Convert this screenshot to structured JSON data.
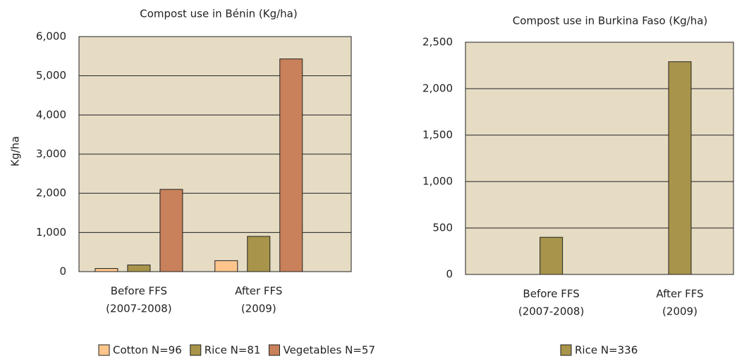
{
  "chart_data": [
    {
      "type": "bar",
      "title": "Compost use in Bénin (Kg/ha)",
      "ylabel": "Kg/ha",
      "categories": [
        [
          "Before FFS",
          "(2007-2008)"
        ],
        [
          "After FFS",
          "(2009)"
        ]
      ],
      "series": [
        {
          "name": "Cotton N=96",
          "color": "#fdc58c",
          "values": [
            80,
            280
          ]
        },
        {
          "name": "Rice N=81",
          "color": "#a8944a",
          "values": [
            170,
            900
          ]
        },
        {
          "name": "Vegetables N=57",
          "color": "#c8815a",
          "values": [
            2100,
            5430
          ]
        }
      ],
      "ylim": [
        0,
        6000
      ],
      "yticks": [
        0,
        {
          "value": 1000,
          "label": "1,000"
        },
        {
          "value": 2000,
          "label": "2,000"
        },
        {
          "value": 3000,
          "label": "3,000"
        },
        {
          "value": 4000,
          "label": "4,000"
        },
        {
          "value": 5000,
          "label": "5,000"
        },
        {
          "value": 6000,
          "label": "6,000"
        }
      ],
      "grid": true
    },
    {
      "type": "bar",
      "title": "Compost use in Burkina Faso (Kg/ha)",
      "categories": [
        [
          "Before FFS",
          "(2007-2008)"
        ],
        [
          "After FFS",
          "(2009)"
        ]
      ],
      "series": [
        {
          "name": "Rice N=336",
          "color": "#a8944a",
          "values": [
            400,
            2290
          ]
        }
      ],
      "ylim": [
        0,
        2500
      ],
      "yticks": [
        0,
        500,
        {
          "value": 1000,
          "label": "1,000"
        },
        {
          "value": 1500,
          "label": "1,500"
        },
        {
          "value": 2000,
          "label": "2,000"
        },
        {
          "value": 2500,
          "label": "2,500"
        }
      ],
      "grid": true
    }
  ]
}
